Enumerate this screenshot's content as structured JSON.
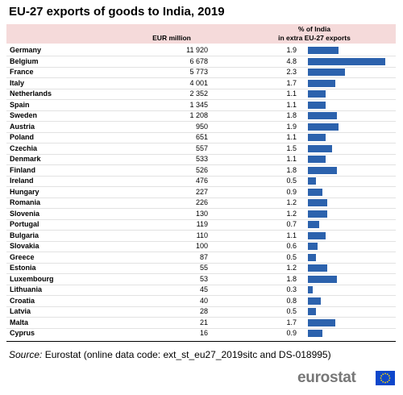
{
  "title": "EU-27 exports of goods to India, 2019",
  "headers": {
    "eur": "EUR million",
    "pct_line1": "% of India",
    "pct_line2": "in extra EU-27 exports"
  },
  "chart_data": {
    "type": "table",
    "title": "EU-27 exports of goods to India, 2019",
    "columns": [
      "",
      "EUR million",
      "% of India in extra EU-27 exports"
    ],
    "rows": [
      {
        "country": "Germany",
        "eur": "11 920",
        "pct": 1.9
      },
      {
        "country": "Belgium",
        "eur": "6 678",
        "pct": 4.8
      },
      {
        "country": "France",
        "eur": "5 773",
        "pct": 2.3
      },
      {
        "country": "Italy",
        "eur": "4 001",
        "pct": 1.7
      },
      {
        "country": "Netherlands",
        "eur": "2 352",
        "pct": 1.1
      },
      {
        "country": "Spain",
        "eur": "1 345",
        "pct": 1.1
      },
      {
        "country": "Sweden",
        "eur": "1 208",
        "pct": 1.8
      },
      {
        "country": "Austria",
        "eur": "950",
        "pct": 1.9
      },
      {
        "country": "Poland",
        "eur": "651",
        "pct": 1.1
      },
      {
        "country": "Czechia",
        "eur": "557",
        "pct": 1.5
      },
      {
        "country": "Denmark",
        "eur": "533",
        "pct": 1.1
      },
      {
        "country": "Finland",
        "eur": "526",
        "pct": 1.8
      },
      {
        "country": "Ireland",
        "eur": "476",
        "pct": 0.5
      },
      {
        "country": "Hungary",
        "eur": "227",
        "pct": 0.9
      },
      {
        "country": "Romania",
        "eur": "226",
        "pct": 1.2
      },
      {
        "country": "Slovenia",
        "eur": "130",
        "pct": 1.2
      },
      {
        "country": "Portugal",
        "eur": "119",
        "pct": 0.7
      },
      {
        "country": "Bulgaria",
        "eur": "110",
        "pct": 1.1
      },
      {
        "country": "Slovakia",
        "eur": "100",
        "pct": 0.6
      },
      {
        "country": "Greece",
        "eur": "87",
        "pct": 0.5
      },
      {
        "country": "Estonia",
        "eur": "55",
        "pct": 1.2
      },
      {
        "country": "Luxembourg",
        "eur": "53",
        "pct": 1.8
      },
      {
        "country": "Lithuania",
        "eur": "45",
        "pct": 0.3
      },
      {
        "country": "Croatia",
        "eur": "40",
        "pct": 0.8
      },
      {
        "country": "Latvia",
        "eur": "28",
        "pct": 0.5
      },
      {
        "country": "Malta",
        "eur": "21",
        "pct": 1.7
      },
      {
        "country": "Cyprus",
        "eur": "16",
        "pct": 0.9
      }
    ],
    "bar_color": "#2c62ad"
  },
  "source": {
    "label": "Source:",
    "text": " Eurostat (online data code: ext_st_eu27_2019sitc and DS-018995)"
  },
  "logo": {
    "text": "eurostat",
    "flag_color": "#0e47cb",
    "star_color": "#ffdd00"
  }
}
